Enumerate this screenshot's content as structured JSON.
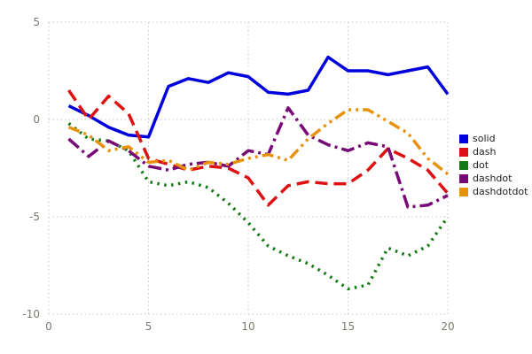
{
  "chart": {
    "tick_color": "#7a7a6e",
    "grid_color": "#c9c9c9",
    "background": "#ffffff",
    "legend_position": "right"
  },
  "chart_data": {
    "type": "line",
    "title": "",
    "xlabel": "",
    "ylabel": "",
    "xlim": [
      0,
      20
    ],
    "ylim": [
      -10,
      5
    ],
    "xticks": [
      0,
      5,
      10,
      15,
      20
    ],
    "yticks": [
      -10,
      -5,
      0,
      5
    ],
    "grid": true,
    "legend_position": "right",
    "x": [
      1,
      2,
      3,
      4,
      5,
      6,
      7,
      8,
      9,
      10,
      11,
      12,
      13,
      14,
      15,
      16,
      17,
      18,
      19,
      20
    ],
    "series": [
      {
        "name": "solid",
        "style": "solid",
        "color": "#0000dd",
        "values": [
          0.7,
          0.2,
          -0.4,
          -0.8,
          -0.9,
          1.7,
          2.1,
          1.9,
          2.4,
          2.2,
          1.4,
          1.3,
          1.5,
          3.2,
          2.5,
          2.5,
          2.3,
          2.5,
          2.7,
          1.3
        ]
      },
      {
        "name": "dash",
        "style": "dash",
        "color": "#dd1111",
        "values": [
          1.5,
          0.0,
          1.2,
          0.3,
          -2.0,
          -2.3,
          -2.6,
          -2.4,
          -2.5,
          -3.0,
          -4.4,
          -3.4,
          -3.2,
          -3.3,
          -3.3,
          -2.6,
          -1.5,
          -2.0,
          -2.6,
          -3.8
        ]
      },
      {
        "name": "dot",
        "style": "dot",
        "color": "#157a15",
        "values": [
          -0.2,
          -1.0,
          -1.1,
          -1.6,
          -3.2,
          -3.4,
          -3.2,
          -3.5,
          -4.3,
          -5.3,
          -6.5,
          -7.0,
          -7.4,
          -8.0,
          -8.7,
          -8.5,
          -6.6,
          -7.0,
          -6.5,
          -5.0
        ]
      },
      {
        "name": "dashdot",
        "style": "dashdot",
        "color": "#780a78",
        "values": [
          -1.0,
          -1.9,
          -1.1,
          -1.6,
          -2.4,
          -2.6,
          -2.3,
          -2.2,
          -2.4,
          -1.6,
          -1.8,
          0.6,
          -0.8,
          -1.3,
          -1.6,
          -1.2,
          -1.4,
          -4.5,
          -4.4,
          -3.9
        ]
      },
      {
        "name": "dashdotdot",
        "style": "dashdotdot",
        "color": "#e8920c",
        "values": [
          -0.4,
          -0.8,
          -1.6,
          -1.4,
          -2.2,
          -2.1,
          -2.6,
          -2.2,
          -2.3,
          -2.0,
          -1.8,
          -2.1,
          -1.0,
          -0.2,
          0.5,
          0.5,
          -0.1,
          -0.7,
          -2.0,
          -2.8
        ]
      }
    ]
  }
}
